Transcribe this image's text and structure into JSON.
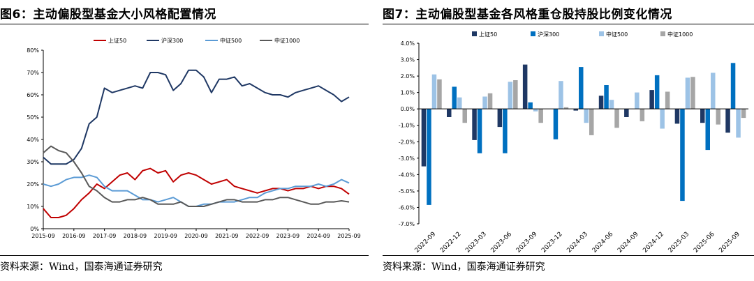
{
  "figures": {
    "left": {
      "title": "图6：主动偏股型基金大小风格配置情况",
      "source": "资料来源：Wind，国泰海通证券研究"
    },
    "right": {
      "title": "图7：主动偏股型基金各风格重仓股持股比例变化情况",
      "source": "资料来源：Wind，国泰海通证券研究"
    }
  },
  "chart_data": [
    {
      "type": "line",
      "title": "",
      "x_axis_kind": "quarterly",
      "x_start": "2015-09",
      "x_end": "2025-09",
      "x": [
        "2015-09",
        "2015-12",
        "2016-03",
        "2016-06",
        "2016-09",
        "2016-12",
        "2017-03",
        "2017-06",
        "2017-09",
        "2017-12",
        "2018-03",
        "2018-06",
        "2018-09",
        "2018-12",
        "2019-03",
        "2019-06",
        "2019-09",
        "2019-12",
        "2020-03",
        "2020-06",
        "2020-09",
        "2020-12",
        "2021-03",
        "2021-06",
        "2021-09",
        "2021-12",
        "2022-03",
        "2022-06",
        "2022-09",
        "2022-12",
        "2023-03",
        "2023-06",
        "2023-09",
        "2023-12",
        "2024-03",
        "2024-06",
        "2024-09",
        "2024-12",
        "2025-03",
        "2025-06",
        "2025-09"
      ],
      "tick_labels": [
        "2015-09",
        "2016-09",
        "2017-09",
        "2018-09",
        "2019-09",
        "2020-09",
        "2021-09",
        "2022-09",
        "2023-09",
        "2024-09",
        "2025-09"
      ],
      "ylim": [
        0,
        80
      ],
      "y_ticks": [
        "0%",
        "10%",
        "20%",
        "30%",
        "40%",
        "50%",
        "60%",
        "70%",
        "80%"
      ],
      "legend_position": "top-center",
      "series": [
        {
          "name": "上证50",
          "color": "#c00000",
          "values": [
            9,
            5,
            5,
            6,
            9,
            13,
            16,
            20,
            18,
            21,
            24,
            25,
            22,
            26,
            27,
            25,
            26,
            21,
            24,
            25,
            24,
            22,
            20,
            21,
            22,
            19,
            18,
            17,
            16,
            17,
            18,
            18,
            17,
            18,
            18,
            19,
            18,
            19,
            19,
            18,
            15.5
          ]
        },
        {
          "name": "沪深300",
          "color": "#1f3864",
          "values": [
            32,
            29,
            29,
            29,
            31,
            36,
            47,
            50,
            63,
            61,
            62,
            63,
            64,
            63,
            70,
            70,
            69,
            62,
            65,
            71,
            71,
            68,
            61,
            67,
            67,
            68,
            64,
            65,
            63,
            61,
            60,
            60,
            59,
            61,
            62,
            63,
            64,
            62,
            60,
            57,
            59
          ]
        },
        {
          "name": "中证500",
          "color": "#5b9bd5",
          "values": [
            20,
            19,
            20,
            22,
            23,
            23,
            24,
            23,
            19,
            17,
            17,
            17,
            15,
            13,
            13,
            12,
            13,
            14,
            12,
            10,
            10,
            11,
            11,
            12,
            12,
            12,
            13,
            14,
            14,
            16,
            17,
            18,
            18,
            19,
            19,
            19,
            20,
            19,
            20,
            22,
            20.5
          ]
        },
        {
          "name": "中证1000",
          "color": "#595959",
          "values": [
            34,
            37,
            35,
            34,
            30,
            25,
            19,
            17,
            14,
            12,
            12,
            13,
            13,
            14,
            13,
            11,
            11,
            11,
            12,
            10,
            10,
            10,
            11,
            12,
            13,
            13,
            12,
            12,
            12,
            13,
            13,
            14,
            14,
            13,
            12,
            11,
            11,
            12,
            12,
            12.5,
            12
          ]
        }
      ]
    },
    {
      "type": "bar",
      "title": "",
      "categories": [
        "2022-09",
        "2022-12",
        "2023-03",
        "2023-06",
        "2023-09",
        "2023-12",
        "2024-03",
        "2024-06",
        "2024-09",
        "2024-12",
        "2025-03",
        "2025-06",
        "2025-09"
      ],
      "ylim": [
        -7,
        4
      ],
      "y_ticks": [
        "-7.0%",
        "-6.0%",
        "-5.0%",
        "-4.0%",
        "-3.0%",
        "-2.0%",
        "-1.0%",
        "0.0%",
        "1.0%",
        "2.0%",
        "3.0%",
        "4.0%"
      ],
      "legend_position": "top-center",
      "series": [
        {
          "name": "上证50",
          "color": "#1f3864",
          "values": [
            -3.5,
            -0.5,
            -1.9,
            -1.1,
            2.7,
            0,
            -0.1,
            0.8,
            -0.5,
            1.15,
            -0.9,
            -0.85,
            -1.45
          ]
        },
        {
          "name": "沪深300",
          "color": "#0070c0",
          "values": [
            -5.85,
            1.35,
            -2.7,
            -2.7,
            0.4,
            -1.85,
            2.55,
            1.45,
            0,
            2.05,
            -5.6,
            -2.5,
            2.8
          ]
        },
        {
          "name": "中证500",
          "color": "#9dc3e6",
          "values": [
            2.1,
            0.7,
            0.75,
            1.65,
            -0.15,
            1.7,
            -0.85,
            0.55,
            1.0,
            -1.2,
            1.9,
            2.2,
            -1.75
          ]
        },
        {
          "name": "中证1000",
          "color": "#a6a6a6",
          "values": [
            1.8,
            -0.85,
            0.95,
            1.75,
            -0.85,
            0.1,
            -1.6,
            -1.15,
            -0.75,
            1.05,
            1.95,
            -0.95,
            -0.55
          ]
        }
      ]
    }
  ]
}
